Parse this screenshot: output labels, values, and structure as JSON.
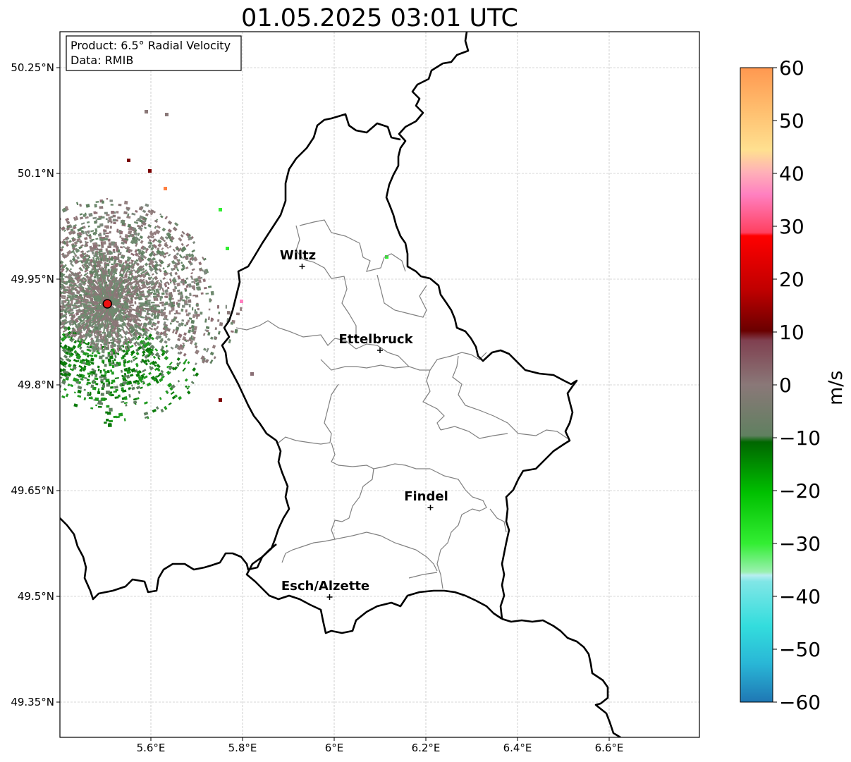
{
  "title": "01.05.2025 03:01 UTC",
  "info_box": {
    "product": "Product: 6.5° Radial Velocity",
    "data": "Data: RMIB"
  },
  "axes": {
    "lon_ticks": [
      "5.6°E",
      "5.8°E",
      "6°E",
      "6.2°E",
      "6.4°E",
      "6.6°E"
    ],
    "lat_ticks": [
      "50.25°N",
      "50.1°N",
      "49.95°N",
      "49.8°N",
      "49.65°N",
      "49.5°N",
      "49.35°N"
    ],
    "lon_values": [
      5.6,
      5.8,
      6.0,
      6.2,
      6.4,
      6.6
    ],
    "lat_values": [
      50.25,
      50.1,
      49.95,
      49.8,
      49.65,
      49.5,
      49.35
    ]
  },
  "cities": [
    {
      "name": "Wiltz",
      "lon": 5.93,
      "lat": 49.968
    },
    {
      "name": "Ettelbruck",
      "lon": 6.1,
      "lat": 49.849
    },
    {
      "name": "Findel",
      "lon": 6.21,
      "lat": 49.626
    },
    {
      "name": "Esch/Alzette",
      "lon": 5.99,
      "lat": 49.499
    }
  ],
  "radar_site": {
    "lon": 5.505,
    "lat": 49.915
  },
  "colorbar": {
    "label": "m/s",
    "min": -60,
    "max": 60,
    "ticks": [
      "60",
      "50",
      "40",
      "30",
      "20",
      "10",
      "0",
      "−10",
      "−20",
      "−30",
      "−40",
      "−50",
      "−60"
    ]
  }
}
